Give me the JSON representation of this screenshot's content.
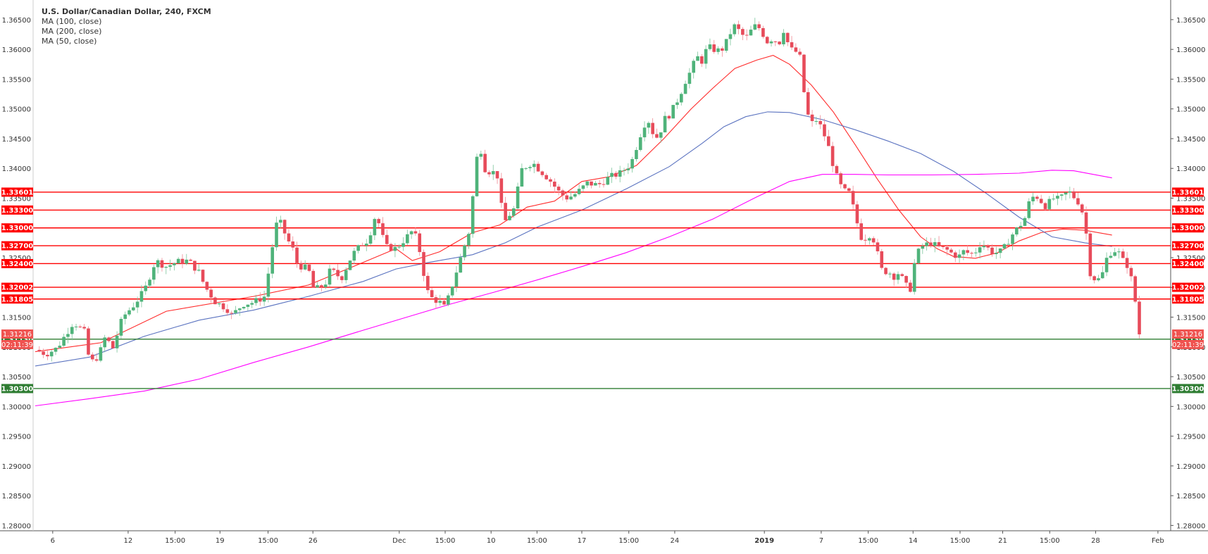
{
  "chart_data": {
    "type": "candlestick",
    "title": "U.S. Dollar/Canadian Dollar, 240, FXCM",
    "indicators": [
      {
        "label": "MA (100, close)",
        "color": "#5b73c0"
      },
      {
        "label": "MA (200, close)",
        "color": "#ff00ff"
      },
      {
        "label": "MA (50, close)",
        "color": "#ff2b2b"
      }
    ],
    "ylim": [
      1.2791,
      1.3683
    ],
    "y_ticks": [
      "1.36500",
      "1.36000",
      "1.35500",
      "1.35000",
      "1.34500",
      "1.34000",
      "1.33500",
      "1.33000",
      "1.32500",
      "1.32000",
      "1.31500",
      "1.31000",
      "1.30500",
      "1.30000",
      "1.29500",
      "1.29000",
      "1.28500",
      "1.28000"
    ],
    "x_ticks": [
      "6",
      "12",
      "15:00",
      "19",
      "15:00",
      "26",
      "Dec",
      "15:00",
      "10",
      "15:00",
      "17",
      "15:00",
      "24",
      "2019",
      "7",
      "15:00",
      "14",
      "15:00",
      "21",
      "15:00",
      "28",
      "Feb"
    ],
    "x_tick_pos": [
      0.016,
      0.085,
      0.128,
      0.169,
      0.213,
      0.254,
      0.333,
      0.375,
      0.417,
      0.459,
      0.5,
      0.543,
      0.585,
      0.667,
      0.719,
      0.762,
      0.803,
      0.846,
      0.885,
      0.928,
      0.97,
      1.027
    ],
    "horizontal_levels": [
      {
        "label": "1.33601",
        "value": 1.33601,
        "color": "#ff0000"
      },
      {
        "label": "1.33300",
        "value": 1.333,
        "color": "#ff0000"
      },
      {
        "label": "1.33000",
        "value": 1.33,
        "color": "#ff0000"
      },
      {
        "label": "1.32700",
        "value": 1.327,
        "color": "#ff0000"
      },
      {
        "label": "1.32400",
        "value": 1.324,
        "color": "#ff0000"
      },
      {
        "label": "1.32002",
        "value": 1.32002,
        "color": "#ff0000"
      },
      {
        "label": "1.31805",
        "value": 1.31805,
        "color": "#ff0000"
      },
      {
        "label": "1.31130",
        "value": 1.3113,
        "color": "#2e7d32"
      },
      {
        "label": "1.30300",
        "value": 1.303,
        "color": "#2e7d32"
      }
    ],
    "price_badges": [
      {
        "label": "1.31216",
        "value": 1.31216,
        "color": "#ef5350"
      },
      {
        "label": "02:11:39",
        "value": 1.3104,
        "color": "#ef5350"
      }
    ],
    "ma_series": [
      {
        "name": "MA (50, close)",
        "color": "#ff2b2b",
        "points": [
          [
            0.0,
            1.3092
          ],
          [
            0.06,
            1.3107
          ],
          [
            0.12,
            1.316
          ],
          [
            0.2,
            1.3185
          ],
          [
            0.25,
            1.3204
          ],
          [
            0.3,
            1.3242
          ],
          [
            0.33,
            1.3265
          ],
          [
            0.345,
            1.3245
          ],
          [
            0.37,
            1.326
          ],
          [
            0.4,
            1.3292
          ],
          [
            0.425,
            1.3305
          ],
          [
            0.45,
            1.3335
          ],
          [
            0.475,
            1.3345
          ],
          [
            0.5,
            1.3378
          ],
          [
            0.525,
            1.3386
          ],
          [
            0.55,
            1.3405
          ],
          [
            0.575,
            1.345
          ],
          [
            0.6,
            1.35
          ],
          [
            0.62,
            1.3535
          ],
          [
            0.64,
            1.3568
          ],
          [
            0.66,
            1.3582
          ],
          [
            0.675,
            1.359
          ],
          [
            0.69,
            1.3575
          ],
          [
            0.71,
            1.354
          ],
          [
            0.73,
            1.3495
          ],
          [
            0.75,
            1.344
          ],
          [
            0.77,
            1.3383
          ],
          [
            0.79,
            1.333
          ],
          [
            0.81,
            1.3285
          ],
          [
            0.825,
            1.3265
          ],
          [
            0.84,
            1.3252
          ],
          [
            0.86,
            1.3249
          ],
          [
            0.88,
            1.3258
          ],
          [
            0.9,
            1.3278
          ],
          [
            0.92,
            1.3292
          ],
          [
            0.94,
            1.3298
          ],
          [
            0.96,
            1.3296
          ],
          [
            0.985,
            1.3288
          ]
        ]
      },
      {
        "name": "MA (100, close)",
        "color": "#5b73c0",
        "points": [
          [
            0.0,
            1.3068
          ],
          [
            0.05,
            1.3083
          ],
          [
            0.1,
            1.3118
          ],
          [
            0.15,
            1.3145
          ],
          [
            0.2,
            1.3162
          ],
          [
            0.25,
            1.3185
          ],
          [
            0.3,
            1.321
          ],
          [
            0.33,
            1.3231
          ],
          [
            0.36,
            1.3242
          ],
          [
            0.4,
            1.3255
          ],
          [
            0.43,
            1.3275
          ],
          [
            0.46,
            1.3302
          ],
          [
            0.5,
            1.333
          ],
          [
            0.54,
            1.3365
          ],
          [
            0.58,
            1.3403
          ],
          [
            0.61,
            1.3442
          ],
          [
            0.63,
            1.347
          ],
          [
            0.65,
            1.3487
          ],
          [
            0.67,
            1.3495
          ],
          [
            0.69,
            1.3494
          ],
          [
            0.72,
            1.3482
          ],
          [
            0.75,
            1.3465
          ],
          [
            0.78,
            1.3446
          ],
          [
            0.81,
            1.3425
          ],
          [
            0.84,
            1.3395
          ],
          [
            0.87,
            1.3358
          ],
          [
            0.9,
            1.3318
          ],
          [
            0.93,
            1.3285
          ],
          [
            0.96,
            1.3275
          ],
          [
            0.985,
            1.3269
          ]
        ]
      },
      {
        "name": "MA (200, close)",
        "color": "#ff00ff",
        "points": [
          [
            0.0,
            1.3001
          ],
          [
            0.05,
            1.3013
          ],
          [
            0.1,
            1.3026
          ],
          [
            0.15,
            1.3046
          ],
          [
            0.2,
            1.3074
          ],
          [
            0.25,
            1.31
          ],
          [
            0.3,
            1.3128
          ],
          [
            0.34,
            1.315
          ],
          [
            0.38,
            1.3172
          ],
          [
            0.42,
            1.3192
          ],
          [
            0.46,
            1.3213
          ],
          [
            0.5,
            1.3235
          ],
          [
            0.54,
            1.3258
          ],
          [
            0.58,
            1.3285
          ],
          [
            0.62,
            1.3315
          ],
          [
            0.66,
            1.3352
          ],
          [
            0.69,
            1.3378
          ],
          [
            0.72,
            1.339
          ],
          [
            0.75,
            1.339
          ],
          [
            0.78,
            1.3389
          ],
          [
            0.82,
            1.3389
          ],
          [
            0.86,
            1.339
          ],
          [
            0.9,
            1.3392
          ],
          [
            0.93,
            1.3397
          ],
          [
            0.95,
            1.3396
          ],
          [
            0.985,
            1.3384
          ]
        ]
      }
    ],
    "price_anchors": [
      [
        0.0,
        1.3095
      ],
      [
        0.01,
        1.3088
      ],
      [
        0.02,
        1.3098
      ],
      [
        0.035,
        1.3142
      ],
      [
        0.045,
        1.3125
      ],
      [
        0.05,
        1.3072
      ],
      [
        0.058,
        1.3085
      ],
      [
        0.065,
        1.3122
      ],
      [
        0.07,
        1.3092
      ],
      [
        0.08,
        1.315
      ],
      [
        0.09,
        1.317
      ],
      [
        0.1,
        1.3195
      ],
      [
        0.11,
        1.3245
      ],
      [
        0.12,
        1.3235
      ],
      [
        0.13,
        1.3243
      ],
      [
        0.14,
        1.3245
      ],
      [
        0.15,
        1.3225
      ],
      [
        0.155,
        1.3202
      ],
      [
        0.165,
        1.3175
      ],
      [
        0.175,
        1.3165
      ],
      [
        0.18,
        1.3153
      ],
      [
        0.19,
        1.3172
      ],
      [
        0.2,
        1.3175
      ],
      [
        0.21,
        1.3185
      ],
      [
        0.215,
        1.3245
      ],
      [
        0.22,
        1.3305
      ],
      [
        0.225,
        1.3308
      ],
      [
        0.23,
        1.3282
      ],
      [
        0.235,
        1.3268
      ],
      [
        0.24,
        1.3238
      ],
      [
        0.25,
        1.323
      ],
      [
        0.255,
        1.3195
      ],
      [
        0.265,
        1.3205
      ],
      [
        0.27,
        1.323
      ],
      [
        0.28,
        1.3215
      ],
      [
        0.29,
        1.3255
      ],
      [
        0.3,
        1.3275
      ],
      [
        0.305,
        1.328
      ],
      [
        0.31,
        1.3318
      ],
      [
        0.315,
        1.3306
      ],
      [
        0.32,
        1.3268
      ],
      [
        0.33,
        1.3265
      ],
      [
        0.34,
        1.3285
      ],
      [
        0.345,
        1.3295
      ],
      [
        0.35,
        1.3278
      ],
      [
        0.355,
        1.3227
      ],
      [
        0.36,
        1.3185
      ],
      [
        0.37,
        1.3175
      ],
      [
        0.375,
        1.3165
      ],
      [
        0.38,
        1.3195
      ],
      [
        0.385,
        1.3225
      ],
      [
        0.39,
        1.3255
      ],
      [
        0.397,
        1.3295
      ],
      [
        0.402,
        1.3383
      ],
      [
        0.405,
        1.3435
      ],
      [
        0.408,
        1.343
      ],
      [
        0.412,
        1.3395
      ],
      [
        0.418,
        1.3395
      ],
      [
        0.424,
        1.3385
      ],
      [
        0.428,
        1.3305
      ],
      [
        0.432,
        1.3318
      ],
      [
        0.438,
        1.3332
      ],
      [
        0.445,
        1.3398
      ],
      [
        0.45,
        1.3405
      ],
      [
        0.455,
        1.341
      ],
      [
        0.46,
        1.34
      ],
      [
        0.47,
        1.3382
      ],
      [
        0.48,
        1.3358
      ],
      [
        0.487,
        1.335
      ],
      [
        0.495,
        1.3358
      ],
      [
        0.505,
        1.3375
      ],
      [
        0.515,
        1.3372
      ],
      [
        0.525,
        1.3385
      ],
      [
        0.535,
        1.3392
      ],
      [
        0.545,
        1.3408
      ],
      [
        0.555,
        1.3465
      ],
      [
        0.56,
        1.3485
      ],
      [
        0.565,
        1.346
      ],
      [
        0.57,
        1.345
      ],
      [
        0.575,
        1.3482
      ],
      [
        0.58,
        1.349
      ],
      [
        0.585,
        1.3505
      ],
      [
        0.59,
        1.3525
      ],
      [
        0.595,
        1.3548
      ],
      [
        0.6,
        1.3565
      ],
      [
        0.605,
        1.3588
      ],
      [
        0.61,
        1.358
      ],
      [
        0.615,
        1.3605
      ],
      [
        0.62,
        1.36
      ],
      [
        0.625,
        1.3598
      ],
      [
        0.63,
        1.3602
      ],
      [
        0.635,
        1.3625
      ],
      [
        0.64,
        1.364
      ],
      [
        0.645,
        1.3628
      ],
      [
        0.65,
        1.3618
      ],
      [
        0.655,
        1.3632
      ],
      [
        0.66,
        1.3642
      ],
      [
        0.665,
        1.3628
      ],
      [
        0.67,
        1.3612
      ],
      [
        0.675,
        1.362
      ],
      [
        0.68,
        1.3608
      ],
      [
        0.685,
        1.3635
      ],
      [
        0.69,
        1.36
      ],
      [
        0.695,
        1.3598
      ],
      [
        0.7,
        1.3585
      ],
      [
        0.705,
        1.3498
      ],
      [
        0.71,
        1.3475
      ],
      [
        0.715,
        1.3482
      ],
      [
        0.72,
        1.3465
      ],
      [
        0.725,
        1.344
      ],
      [
        0.73,
        1.3405
      ],
      [
        0.735,
        1.3375
      ],
      [
        0.74,
        1.3362
      ],
      [
        0.745,
        1.3358
      ],
      [
        0.75,
        1.3322
      ],
      [
        0.755,
        1.3285
      ],
      [
        0.76,
        1.3283
      ],
      [
        0.765,
        1.3292
      ],
      [
        0.77,
        1.326
      ],
      [
        0.775,
        1.3225
      ],
      [
        0.78,
        1.3228
      ],
      [
        0.785,
        1.3218
      ],
      [
        0.79,
        1.3225
      ],
      [
        0.795,
        1.3208
      ],
      [
        0.8,
        1.3192
      ],
      [
        0.805,
        1.3248
      ],
      [
        0.81,
        1.3268
      ],
      [
        0.815,
        1.3272
      ],
      [
        0.82,
        1.3275
      ],
      [
        0.825,
        1.3268
      ],
      [
        0.83,
        1.3265
      ],
      [
        0.835,
        1.3262
      ],
      [
        0.84,
        1.3255
      ],
      [
        0.845,
        1.3252
      ],
      [
        0.85,
        1.3262
      ],
      [
        0.855,
        1.3255
      ],
      [
        0.86,
        1.326
      ],
      [
        0.865,
        1.3275
      ],
      [
        0.87,
        1.3268
      ],
      [
        0.875,
        1.326
      ],
      [
        0.88,
        1.3258
      ],
      [
        0.885,
        1.3262
      ],
      [
        0.89,
        1.3278
      ],
      [
        0.895,
        1.3292
      ],
      [
        0.9,
        1.3302
      ],
      [
        0.905,
        1.3315
      ],
      [
        0.91,
        1.3348
      ],
      [
        0.915,
        1.3355
      ],
      [
        0.92,
        1.3345
      ],
      [
        0.925,
        1.3335
      ],
      [
        0.93,
        1.335
      ],
      [
        0.935,
        1.3348
      ],
      [
        0.94,
        1.3352
      ],
      [
        0.945,
        1.3362
      ],
      [
        0.95,
        1.3352
      ],
      [
        0.955,
        1.3342
      ],
      [
        0.96,
        1.3315
      ],
      [
        0.965,
        1.3225
      ],
      [
        0.97,
        1.3212
      ],
      [
        0.975,
        1.3215
      ],
      [
        0.98,
        1.3248
      ],
      [
        0.985,
        1.3262
      ],
      [
        0.99,
        1.3262
      ],
      [
        0.995,
        1.3245
      ],
      [
        1.0,
        1.3235
      ],
      [
        1.005,
        1.3195
      ],
      [
        1.01,
        1.3122
      ]
    ]
  }
}
